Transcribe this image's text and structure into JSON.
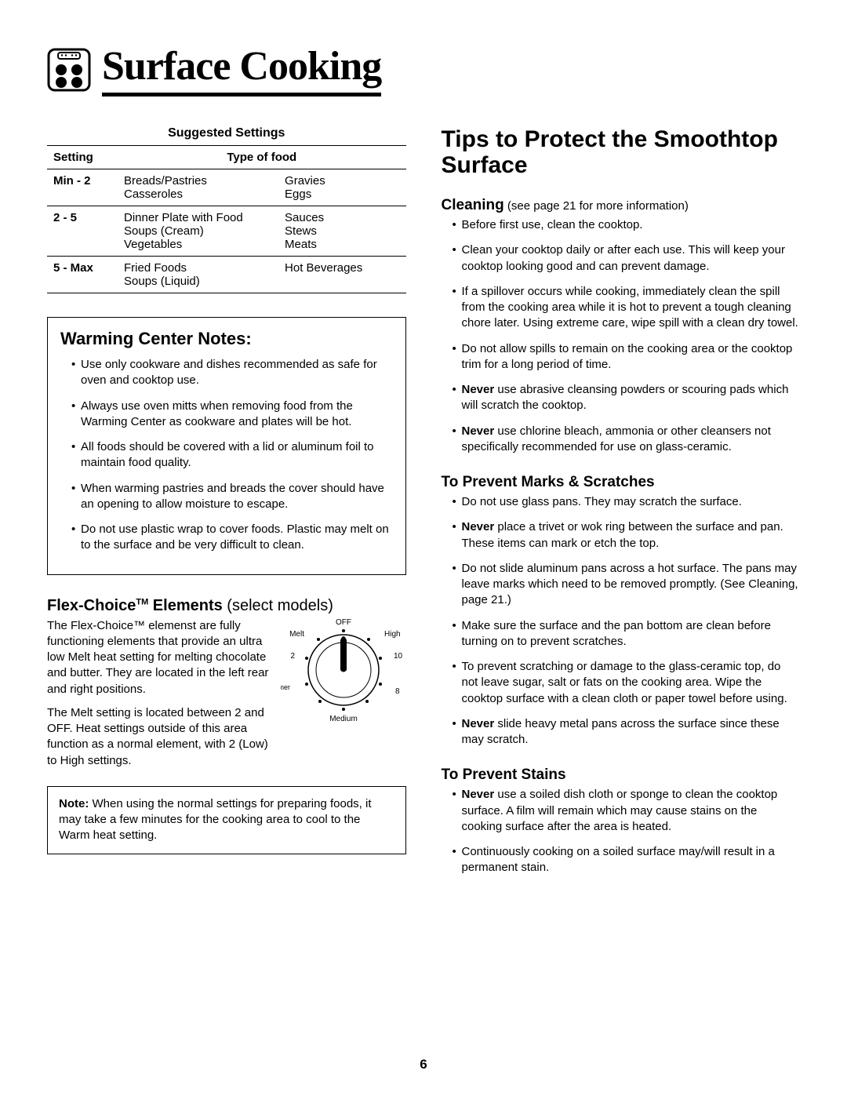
{
  "header": {
    "title": "Surface Cooking"
  },
  "table": {
    "title": "Suggested Settings",
    "col1": "Setting",
    "col2": "Type of food",
    "rows": [
      {
        "setting": "Min - 2",
        "left": "Breads/Pastries\nCasseroles",
        "right": "Gravies\nEggs"
      },
      {
        "setting": "2 - 5",
        "left": "Dinner Plate with Food\nSoups (Cream)\nVegetables",
        "right": "Sauces\nStews\nMeats"
      },
      {
        "setting": "5 - Max",
        "left": "Fried Foods\nSoups (Liquid)",
        "right": "Hot Beverages"
      }
    ]
  },
  "warming": {
    "title": "Warming Center Notes:",
    "items": [
      "Use only cookware and dishes recommended as safe for oven and cooktop use.",
      "Always use oven mitts when removing food from the Warming Center as cookware and plates will be hot.",
      "All foods should be covered with a lid or aluminum foil to maintain food quality.",
      "When warming pastries and breads the cover should have an opening to allow moisture to escape.",
      "Do not use plastic wrap to cover foods. Plastic may melt on to the surface and be very difficult to clean."
    ]
  },
  "flex": {
    "heading_strong": "Flex-Choice",
    "heading_tm": "TM",
    "heading_rest": " Elements",
    "heading_light": " (select models)",
    "para1": "The Flex-Choice™ elemenst are fully functioning elements that provide an ultra low Melt heat setting for melting chocolate and butter. They are located in the left rear  and right positions.",
    "para2": "The Melt setting is located between 2 and OFF. Heat settings outside of this area function as a normal element, with 2 (Low) to High settings.",
    "dial_labels": {
      "off": "OFF",
      "melt": "Melt",
      "high": "High",
      "n2": "2",
      "n10": "10",
      "simmer": "Simmer",
      "n8": "8",
      "medium": "Medium"
    }
  },
  "note": {
    "label": "Note:",
    "text": " When using the normal settings for preparing foods, it may take a few minutes for the cooking area to cool to the Warm heat setting."
  },
  "right": {
    "title": "Tips to Protect the Smoothtop Surface",
    "cleaning_h": "Cleaning",
    "cleaning_light": " (see page 21 for more information)",
    "cleaning_items": [
      {
        "pre": "",
        "bold": "",
        "text": "Before first use, clean the cooktop."
      },
      {
        "pre": "",
        "bold": "",
        "text": "Clean your cooktop daily or after each use. This will keep your cooktop looking good and can prevent damage."
      },
      {
        "pre": "",
        "bold": "",
        "text": "If a spillover occurs while cooking, immediately clean the spill from the cooking area while it is hot to prevent a tough cleaning chore later. Using extreme care, wipe spill with a clean dry towel."
      },
      {
        "pre": "",
        "bold": "",
        "text": "Do not allow spills to remain on the cooking area or the cooktop trim for a long period of time."
      },
      {
        "pre": "",
        "bold": "Never",
        "text": " use abrasive cleansing powders or scouring pads which will scratch the cooktop."
      },
      {
        "pre": "",
        "bold": "Never",
        "text": " use chlorine bleach, ammonia or other cleansers not specifically recommended for use on glass-ceramic."
      }
    ],
    "marks_h": "To Prevent Marks & Scratches",
    "marks_items": [
      {
        "bold": "",
        "text": "Do not use glass pans. They may scratch the surface."
      },
      {
        "bold": "Never",
        "text": " place a trivet or wok ring between the surface and pan.  These items can mark or etch the top."
      },
      {
        "bold": "",
        "text": "Do not slide aluminum pans across a hot surface. The pans may leave marks which need to be removed promptly. (See Cleaning, page 21.)"
      },
      {
        "bold": "",
        "text": "Make sure the surface and the pan bottom are clean before turning on to prevent scratches."
      },
      {
        "bold": "",
        "text": "To prevent scratching or damage to the glass-ceramic top, do not leave sugar, salt or fats on the cooking area. Wipe the cooktop surface with a clean cloth or paper towel before using."
      },
      {
        "bold": "Never",
        "text": " slide heavy metal pans across the surface since these may scratch."
      }
    ],
    "stains_h": "To Prevent Stains",
    "stains_items": [
      {
        "bold": "Never",
        "text": " use a soiled dish cloth or sponge to clean the cooktop surface. A film will remain which may cause stains on the cooking surface after the area is heated."
      },
      {
        "bold": "",
        "text": "Continuously cooking on a soiled surface may/will result in a permanent stain."
      }
    ]
  },
  "page_number": "6"
}
